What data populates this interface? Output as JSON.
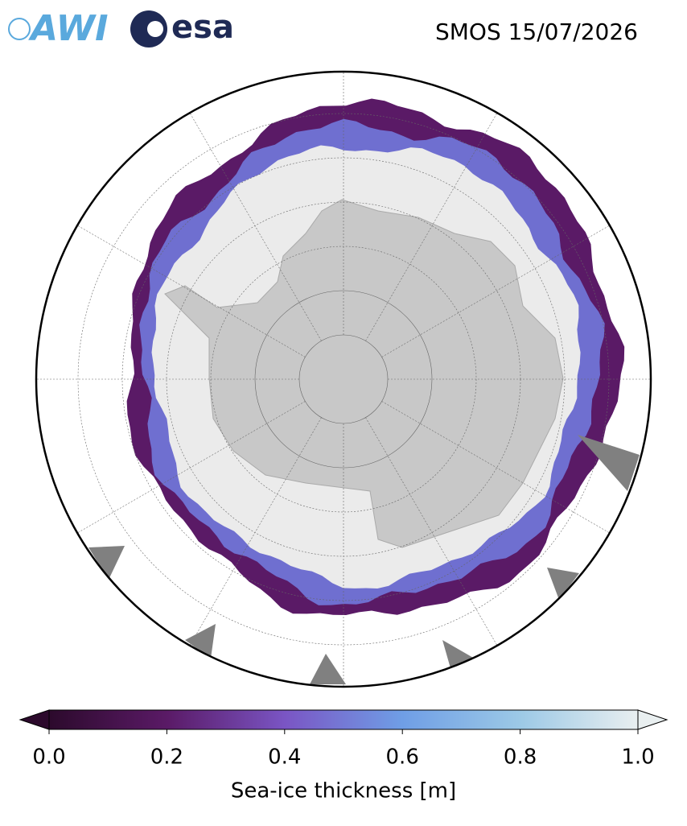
{
  "logos": {
    "awi": "AWI",
    "esa": "esa"
  },
  "title": "SMOS 15/07/2026",
  "colorbar": {
    "label": "Sea-ice thickness [m]",
    "lim": [
      0,
      1
    ],
    "ticks": [
      {
        "value": 0,
        "label": "0.0"
      },
      0.2,
      0.4,
      0.6,
      0.8,
      {
        "value": 1,
        "label": "1.0"
      }
    ],
    "colors": [
      "#2c0a2c",
      "#5a1a66",
      "#7a55c4",
      "#6f9ee6",
      "#9cc9e6",
      "#e9eff0"
    ]
  }
}
